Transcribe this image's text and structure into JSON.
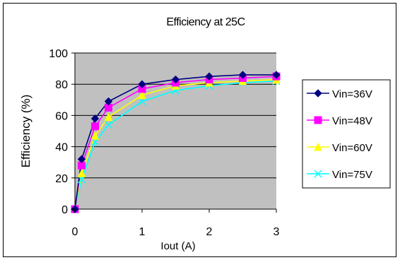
{
  "chart_data": {
    "type": "line",
    "title": "Efficiency at 25C",
    "xlabel": "Iout (A)",
    "ylabel": "Efficiency (%)",
    "xlim": [
      0,
      3
    ],
    "ylim": [
      0,
      100
    ],
    "x_ticks": [
      "0",
      "1",
      "2",
      "3"
    ],
    "y_ticks": [
      "0",
      "20",
      "40",
      "60",
      "80",
      "100"
    ],
    "grid": "horizontal",
    "legend_position": "right",
    "plot_background": "#c0c0c0",
    "series": [
      {
        "name": "Vin=36V",
        "color": "#000080",
        "marker": "diamond",
        "x": [
          0,
          0.1,
          0.3,
          0.5,
          1.0,
          1.5,
          2.0,
          2.5,
          3.0
        ],
        "values": [
          0,
          32,
          58,
          69,
          80,
          83,
          85,
          86,
          86
        ]
      },
      {
        "name": "Vin=48V",
        "color": "#ff00ff",
        "marker": "square",
        "x": [
          0,
          0.1,
          0.3,
          0.5,
          1.0,
          1.5,
          2.0,
          2.5,
          3.0
        ],
        "values": [
          0,
          28,
          53,
          65,
          77,
          81,
          83,
          84,
          85
        ]
      },
      {
        "name": "Vin=60V",
        "color": "#ffff00",
        "marker": "triangle",
        "x": [
          0,
          0.1,
          0.3,
          0.5,
          1.0,
          1.5,
          2.0,
          2.5,
          3.0
        ],
        "values": [
          0,
          23,
          47,
          59,
          73,
          79,
          81,
          82,
          83
        ]
      },
      {
        "name": "Vin=75V",
        "color": "#00ffff",
        "marker": "x",
        "x": [
          0,
          0.1,
          0.3,
          0.5,
          1.0,
          1.5,
          2.0,
          2.5,
          3.0
        ],
        "values": [
          0,
          19,
          43,
          54,
          69,
          76,
          79,
          81,
          82
        ]
      }
    ]
  }
}
